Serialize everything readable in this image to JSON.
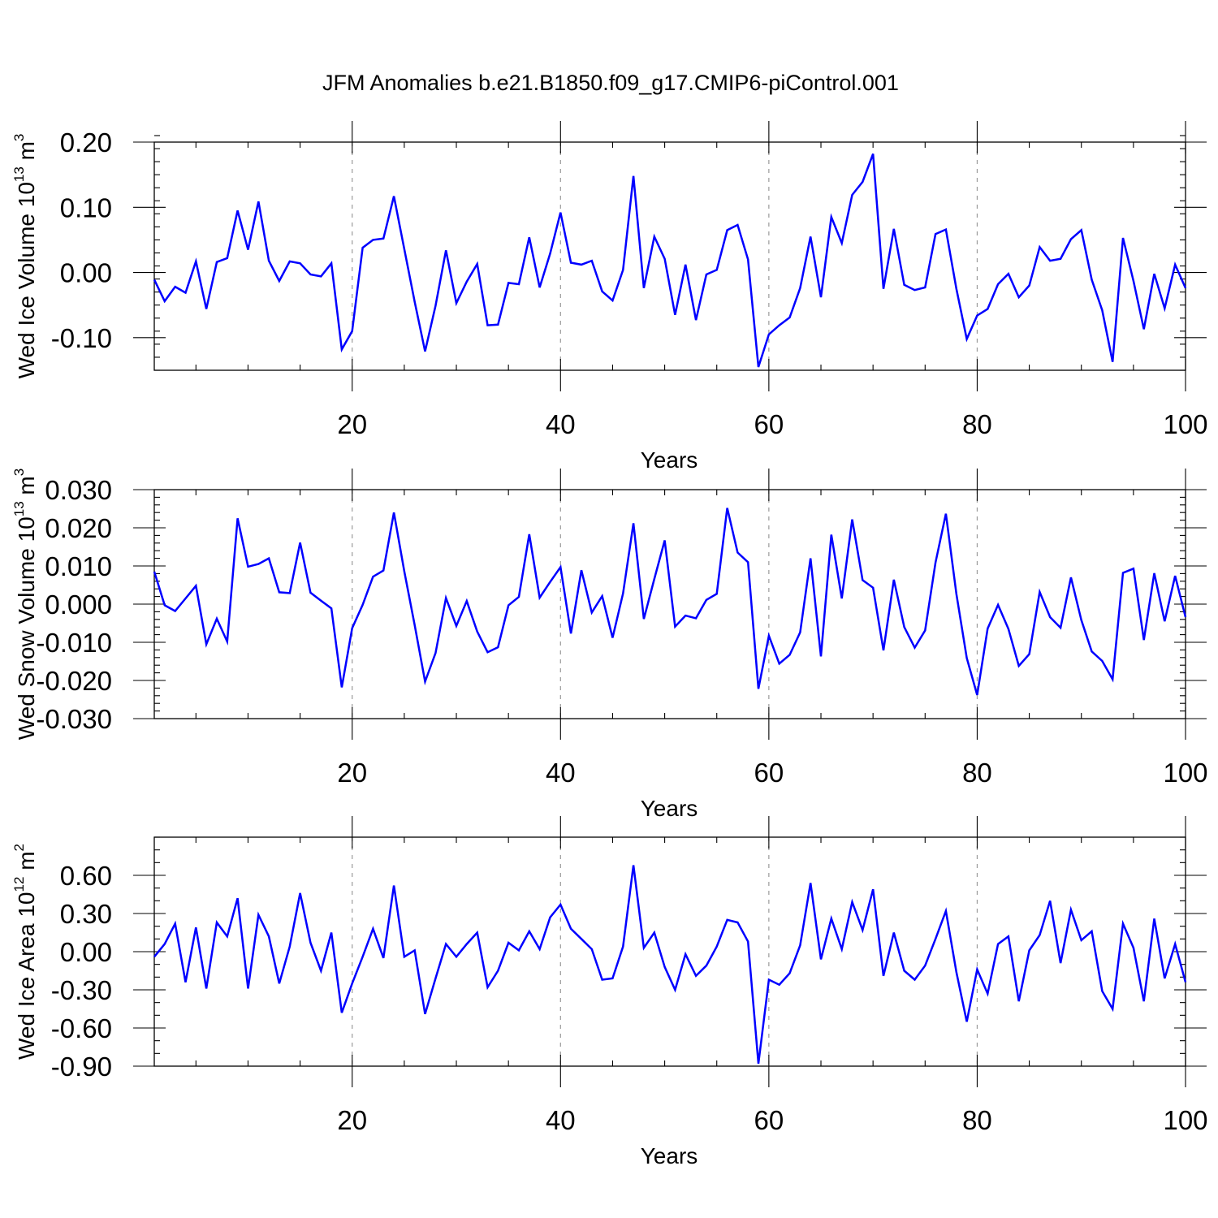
{
  "chart_data": {
    "title": "JFM Anomalies b.e21.B1850.f09_g17.CMIP6-piControl.001",
    "panels": [
      {
        "type": "line",
        "ylabel": "Wed Ice Volume 10",
        "ylabel_exp": "13",
        "ylabel_unit": " m",
        "ylabel_unit_exp": "3",
        "xlabel": "Years",
        "xlim": [
          1,
          100
        ],
        "ylim": [
          -0.15,
          0.2
        ],
        "xticks": [
          20,
          40,
          60,
          80,
          100
        ],
        "xtick_labels": [
          "20",
          "40",
          "60",
          "80",
          "100"
        ],
        "yticks": [
          0.2,
          0.1,
          0.0,
          -0.1
        ],
        "ytick_labels": [
          "0.20",
          "0.10",
          "0.00",
          "-0.10"
        ],
        "yminor_step": 0.02,
        "series": [
          {
            "name": "Wed Ice Volume",
            "color": "#0000ff",
            "x": [
              1,
              2,
              3,
              4,
              5,
              6,
              7,
              8,
              9,
              10,
              11,
              12,
              13,
              14,
              15,
              16,
              17,
              18,
              19,
              20,
              21,
              22,
              23,
              24,
              25,
              26,
              27,
              28,
              29,
              30,
              31,
              32,
              33,
              34,
              35,
              36,
              37,
              38,
              39,
              40,
              41,
              42,
              43,
              44,
              45,
              46,
              47,
              48,
              49,
              50,
              51,
              52,
              53,
              54,
              55,
              56,
              57,
              58,
              59,
              60,
              61,
              62,
              63,
              64,
              65,
              66,
              67,
              68,
              69,
              70,
              71,
              72,
              73,
              74,
              75,
              76,
              77,
              78,
              79,
              80,
              81,
              82,
              83,
              84,
              85,
              86,
              87,
              88,
              89,
              90,
              91,
              92,
              93,
              94,
              95,
              96,
              97,
              98,
              99,
              100
            ],
            "values": [
              -0.011,
              -0.044,
              -0.022,
              -0.031,
              0.017,
              -0.056,
              0.016,
              0.022,
              0.095,
              0.035,
              0.109,
              0.018,
              -0.013,
              0.017,
              0.014,
              -0.003,
              -0.006,
              0.014,
              -0.118,
              -0.09,
              0.038,
              0.05,
              0.052,
              0.117,
              0.036,
              -0.045,
              -0.121,
              -0.051,
              0.034,
              -0.047,
              -0.014,
              0.013,
              -0.081,
              -0.08,
              -0.016,
              -0.018,
              0.054,
              -0.023,
              0.029,
              0.092,
              0.015,
              0.012,
              0.018,
              -0.029,
              -0.043,
              0.004,
              0.148,
              -0.024,
              0.055,
              0.021,
              -0.065,
              0.012,
              -0.073,
              -0.003,
              0.004,
              0.065,
              0.073,
              0.02,
              -0.145,
              -0.095,
              -0.081,
              -0.069,
              -0.024,
              0.055,
              -0.038,
              0.085,
              0.045,
              0.119,
              0.139,
              0.182,
              -0.025,
              0.067,
              -0.019,
              -0.027,
              -0.023,
              0.059,
              0.066,
              -0.025,
              -0.102,
              -0.066,
              -0.056,
              -0.018,
              -0.002,
              -0.038,
              -0.02,
              0.039,
              0.018,
              0.021,
              0.051,
              0.065,
              -0.011,
              -0.058,
              -0.137,
              0.053,
              -0.013,
              -0.087,
              -0.002,
              -0.055,
              0.012,
              -0.024
            ]
          }
        ]
      },
      {
        "type": "line",
        "ylabel": "Wed Snow Volume 10",
        "ylabel_exp": "13",
        "ylabel_unit": " m",
        "ylabel_unit_exp": "3",
        "xlabel": "Years",
        "xlim": [
          1,
          100
        ],
        "ylim": [
          -0.03,
          0.03
        ],
        "xticks": [
          20,
          40,
          60,
          80,
          100
        ],
        "xtick_labels": [
          "20",
          "40",
          "60",
          "80",
          "100"
        ],
        "yticks": [
          0.03,
          0.02,
          0.01,
          0.0,
          -0.01,
          -0.02,
          -0.03
        ],
        "ytick_labels": [
          "0.030",
          "0.020",
          "0.010",
          "0.000",
          "-0.010",
          "-0.020",
          "-0.030"
        ],
        "yminor_step": 0.002,
        "series": [
          {
            "name": "Wed Snow Volume",
            "color": "#0000ff",
            "x": [
              1,
              2,
              3,
              4,
              5,
              6,
              7,
              8,
              9,
              10,
              11,
              12,
              13,
              14,
              15,
              16,
              17,
              18,
              19,
              20,
              21,
              22,
              23,
              24,
              25,
              26,
              27,
              28,
              29,
              30,
              31,
              32,
              33,
              34,
              35,
              36,
              37,
              38,
              39,
              40,
              41,
              42,
              43,
              44,
              45,
              46,
              47,
              48,
              49,
              50,
              51,
              52,
              53,
              54,
              55,
              56,
              57,
              58,
              59,
              60,
              61,
              62,
              63,
              64,
              65,
              66,
              67,
              68,
              69,
              70,
              71,
              72,
              73,
              74,
              75,
              76,
              77,
              78,
              79,
              80,
              81,
              82,
              83,
              84,
              85,
              86,
              87,
              88,
              89,
              90,
              91,
              92,
              93,
              94,
              95,
              96,
              97,
              98,
              99,
              100
            ],
            "values": [
              0.0085,
              -0.0003,
              -0.0018,
              0.0015,
              0.0048,
              -0.0105,
              -0.0038,
              -0.0098,
              0.0225,
              0.0098,
              0.0105,
              0.012,
              0.0031,
              0.0029,
              0.0161,
              0.003,
              0.0009,
              -0.0011,
              -0.0218,
              -0.0063,
              -0.0002,
              0.0072,
              0.0088,
              0.024,
              0.0086,
              -0.0055,
              -0.0203,
              -0.0128,
              0.0016,
              -0.0057,
              0.0008,
              -0.0072,
              -0.0126,
              -0.0113,
              -0.0003,
              0.0019,
              0.0183,
              0.0017,
              0.0058,
              0.0097,
              -0.0077,
              0.0089,
              -0.0022,
              0.0021,
              -0.0088,
              0.0028,
              0.0212,
              -0.0039,
              0.0066,
              0.0167,
              -0.0059,
              -0.003,
              -0.0037,
              0.0011,
              0.0027,
              0.0252,
              0.0135,
              0.011,
              -0.0222,
              -0.0083,
              -0.0156,
              -0.0133,
              -0.0074,
              0.012,
              -0.0137,
              0.0182,
              0.0015,
              0.0222,
              0.0063,
              0.0043,
              -0.0121,
              0.0064,
              -0.006,
              -0.0114,
              -0.0069,
              0.0109,
              0.0237,
              0.0027,
              -0.0141,
              -0.0238,
              -0.0064,
              -0.0002,
              -0.0065,
              -0.0162,
              -0.0131,
              0.0032,
              -0.0034,
              -0.0062,
              0.007,
              -0.0042,
              -0.0124,
              -0.0149,
              -0.0197,
              0.0082,
              0.0093,
              -0.0094,
              0.0081,
              -0.0045,
              0.0074,
              -0.0034
            ]
          }
        ]
      },
      {
        "type": "line",
        "ylabel": "Wed Ice Area 10",
        "ylabel_exp": "12",
        "ylabel_unit": " m",
        "ylabel_unit_exp": "2",
        "xlabel": "Years",
        "xlim": [
          1,
          100
        ],
        "ylim": [
          -0.9,
          0.9
        ],
        "xticks": [
          20,
          40,
          60,
          80,
          100
        ],
        "xtick_labels": [
          "20",
          "40",
          "60",
          "80",
          "100"
        ],
        "yticks": [
          0.6,
          0.3,
          0.0,
          -0.3,
          -0.6,
          -0.9
        ],
        "ytick_labels": [
          "0.60",
          "0.30",
          "0.00",
          "-0.30",
          "-0.60",
          "-0.90"
        ],
        "yminor_step": 0.1,
        "series": [
          {
            "name": "Wed Ice Area",
            "color": "#0000ff",
            "x": [
              1,
              2,
              3,
              4,
              5,
              6,
              7,
              8,
              9,
              10,
              11,
              12,
              13,
              14,
              15,
              16,
              17,
              18,
              19,
              20,
              21,
              22,
              23,
              24,
              25,
              26,
              27,
              28,
              29,
              30,
              31,
              32,
              33,
              34,
              35,
              36,
              37,
              38,
              39,
              40,
              41,
              42,
              43,
              44,
              45,
              46,
              47,
              48,
              49,
              50,
              51,
              52,
              53,
              54,
              55,
              56,
              57,
              58,
              59,
              60,
              61,
              62,
              63,
              64,
              65,
              66,
              67,
              68,
              69,
              70,
              71,
              72,
              73,
              74,
              75,
              76,
              77,
              78,
              79,
              80,
              81,
              82,
              83,
              84,
              85,
              86,
              87,
              88,
              89,
              90,
              91,
              92,
              93,
              94,
              95,
              96,
              97,
              98,
              99,
              100
            ],
            "values": [
              -0.04,
              0.06,
              0.22,
              -0.24,
              0.19,
              -0.29,
              0.23,
              0.12,
              0.42,
              -0.29,
              0.29,
              0.12,
              -0.25,
              0.04,
              0.46,
              0.07,
              -0.15,
              0.15,
              -0.48,
              -0.25,
              -0.04,
              0.18,
              -0.05,
              0.52,
              -0.04,
              0.01,
              -0.49,
              -0.21,
              0.06,
              -0.04,
              0.06,
              0.15,
              -0.28,
              -0.15,
              0.07,
              0.01,
              0.16,
              0.02,
              0.27,
              0.37,
              0.18,
              0.1,
              0.02,
              -0.22,
              -0.21,
              0.04,
              0.68,
              0.03,
              0.15,
              -0.12,
              -0.3,
              -0.02,
              -0.19,
              -0.11,
              0.04,
              0.25,
              0.23,
              0.08,
              -0.88,
              -0.22,
              -0.26,
              -0.17,
              0.05,
              0.54,
              -0.06,
              0.26,
              0.02,
              0.39,
              0.17,
              0.49,
              -0.19,
              0.15,
              -0.15,
              -0.22,
              -0.11,
              0.1,
              0.32,
              -0.16,
              -0.55,
              -0.14,
              -0.33,
              0.06,
              0.12,
              -0.39,
              0.01,
              0.13,
              0.4,
              -0.09,
              0.33,
              0.09,
              0.16,
              -0.31,
              -0.45,
              0.22,
              0.03,
              -0.39,
              0.26,
              -0.21,
              0.06,
              -0.24
            ]
          }
        ]
      }
    ]
  }
}
